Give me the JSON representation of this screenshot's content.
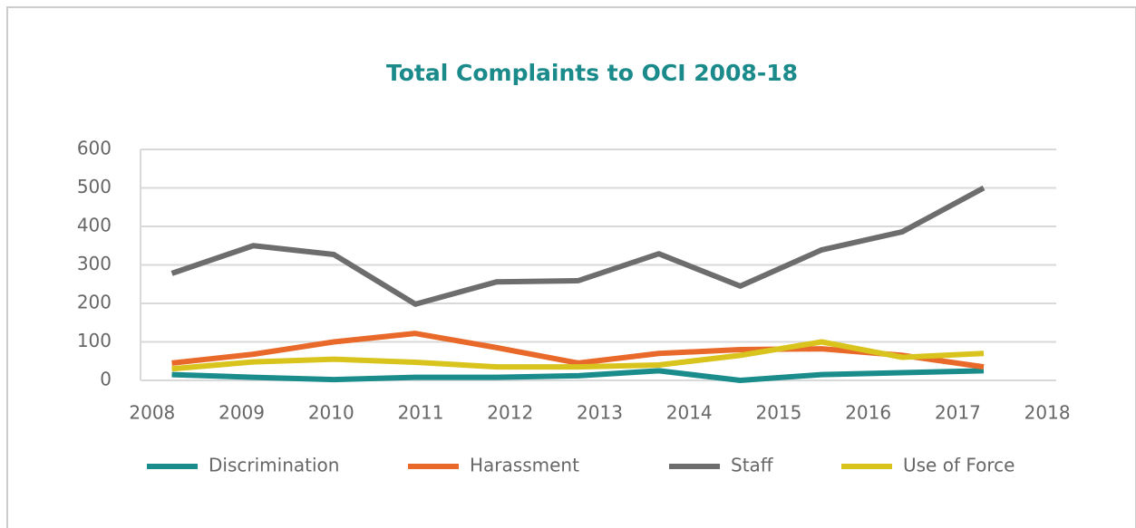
{
  "chart_data": {
    "type": "line",
    "title": "Total Complaints to OCI 2008-18",
    "x": [
      2008.22,
      2009.13,
      2010.03,
      2010.94,
      2011.85,
      2012.76,
      2013.66,
      2014.57,
      2015.48,
      2016.38,
      2017.29
    ],
    "series": [
      {
        "name": "Discrimination",
        "color": "#1a8c8c",
        "values": [
          15,
          8,
          2,
          8,
          8,
          12,
          25,
          0,
          15,
          20,
          25
        ]
      },
      {
        "name": "Harassment",
        "color": "#e8692a",
        "values": [
          45,
          68,
          100,
          122,
          85,
          45,
          70,
          80,
          82,
          65,
          35
        ]
      },
      {
        "name": "Staff",
        "color": "#6d6d6d",
        "values": [
          278,
          350,
          327,
          198,
          256,
          259,
          329,
          245,
          339,
          386,
          500
        ]
      },
      {
        "name": "Use of Force",
        "color": "#d8c41c",
        "values": [
          30,
          48,
          55,
          47,
          35,
          35,
          40,
          65,
          100,
          60,
          70
        ]
      }
    ],
    "xlim": [
      2007.87,
      2018.1
    ],
    "xticks": [
      2008,
      2009,
      2010,
      2011,
      2012,
      2013,
      2014,
      2015,
      2016,
      2017,
      2018
    ],
    "ylim": [
      0,
      600
    ],
    "yticks": [
      0,
      100,
      200,
      300,
      400,
      500,
      600
    ],
    "grid": true
  }
}
